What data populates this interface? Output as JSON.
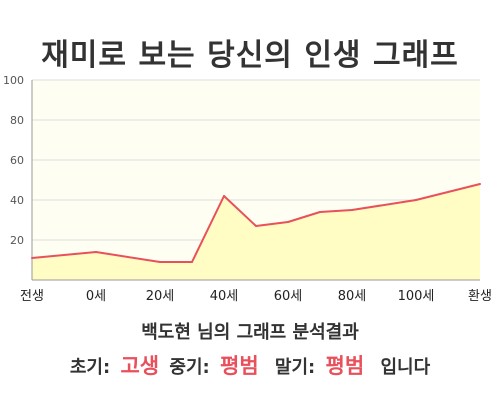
{
  "page": {
    "title": "재미로 보는 당신의 인생 그래프",
    "summary": "백도현 님의 그래프 분석결과",
    "verdict": {
      "early_label": "초기:",
      "early_value": "고생",
      "mid_label": "중기:",
      "mid_value": "평범",
      "late_label": "말기:",
      "late_value": "평범",
      "ending": "입니다"
    }
  },
  "colors": {
    "fill": "#fffdc4",
    "plot_background": "#fffef2",
    "line": "#e8505b",
    "grid": "#dddddd",
    "axis": "#999999",
    "highlight_text": "#e8505b"
  },
  "chart_data": {
    "type": "area",
    "x_categories": [
      "전생",
      "0세",
      "20세",
      "40세",
      "60세",
      "80세",
      "100세",
      "환생"
    ],
    "ylim": [
      0,
      100
    ],
    "yticks": [
      20,
      40,
      60,
      80,
      100
    ],
    "grid": true,
    "series": [
      {
        "points": [
          {
            "x": "전생",
            "y": 11
          },
          {
            "x": "0세",
            "y": 14
          },
          {
            "x": "20세",
            "y": 9
          },
          {
            "x": "30세",
            "y": 9
          },
          {
            "x": "40세",
            "y": 42
          },
          {
            "x": "50세",
            "y": 27
          },
          {
            "x": "60세",
            "y": 29
          },
          {
            "x": "70세",
            "y": 34
          },
          {
            "x": "80세",
            "y": 35
          },
          {
            "x": "100세",
            "y": 40
          },
          {
            "x": "환생",
            "y": 48
          }
        ]
      }
    ]
  }
}
